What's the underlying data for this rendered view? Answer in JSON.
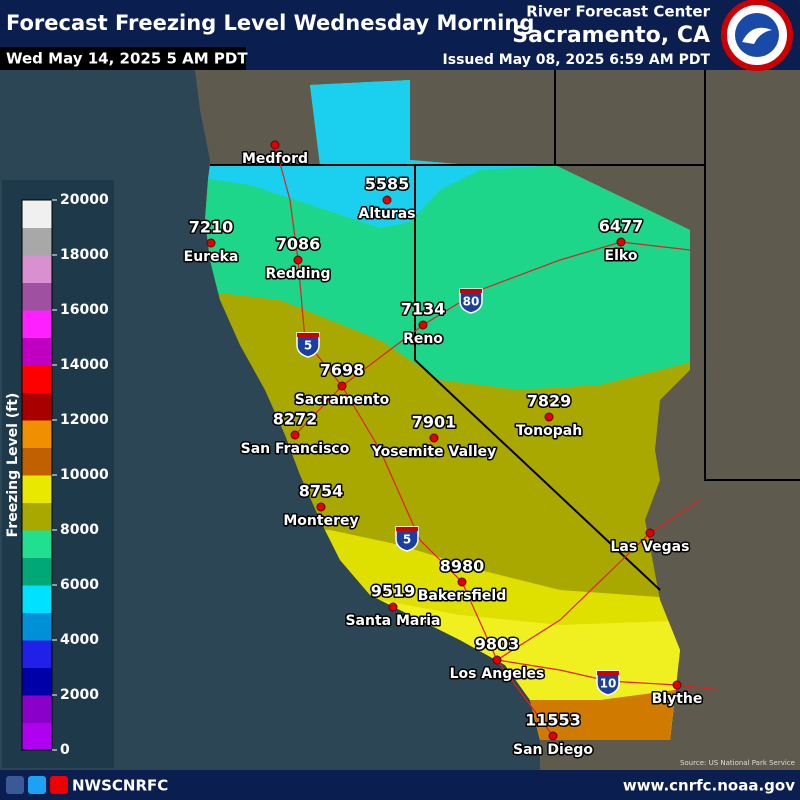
{
  "header": {
    "title": "Forecast Freezing Level Wednesday Morning",
    "valid_time": "Wed May 14, 2025 5 AM PDT",
    "office_line1": "River Forecast Center",
    "office_line2": "Sacramento, CA",
    "issued": "Issued May 08, 2025 6:59 AM PDT"
  },
  "legend": {
    "title": "Freezing Level (ft)",
    "range": [
      0,
      20000
    ],
    "ticks": [
      0,
      2000,
      4000,
      6000,
      8000,
      10000,
      12000,
      14000,
      16000,
      18000,
      20000
    ],
    "colors": [
      "#b000f0",
      "#8a00c8",
      "#0000a8",
      "#2020e8",
      "#0090d8",
      "#00e0ff",
      "#00a878",
      "#20e090",
      "#a8a800",
      "#e8e800",
      "#c06000",
      "#f09000",
      "#a80000",
      "#ff0000",
      "#c000c0",
      "#ff20ff",
      "#a050a0",
      "#d890d0",
      "#a8a8a8",
      "#f0f0f0"
    ]
  },
  "cities": [
    {
      "name": "Medford"
    },
    {
      "name": "Alturas",
      "value": 5585
    },
    {
      "name": "Eureka",
      "value": 7210
    },
    {
      "name": "Redding",
      "value": 7086
    },
    {
      "name": "Elko",
      "value": 6477
    },
    {
      "name": "Reno",
      "value": 7134
    },
    {
      "name": "Sacramento",
      "value": 7698
    },
    {
      "name": "Tonopah",
      "value": 7829
    },
    {
      "name": "San Francisco",
      "value": 8272
    },
    {
      "name": "Yosemite Valley",
      "value": 7901
    },
    {
      "name": "Monterey",
      "value": 8754
    },
    {
      "name": "Las Vegas"
    },
    {
      "name": "Bakersfield",
      "value": 8980
    },
    {
      "name": "Santa Maria",
      "value": 9519
    },
    {
      "name": "Los Angeles",
      "value": 9803
    },
    {
      "name": "Blythe"
    },
    {
      "name": "San Diego",
      "value": 11553
    }
  ],
  "interstates": [
    "5",
    "80",
    "5",
    "10"
  ],
  "source": "Source: US National Park Service",
  "footer": {
    "handle": "NWSCNRFC",
    "url": "www.cnrfc.noaa.gov"
  }
}
